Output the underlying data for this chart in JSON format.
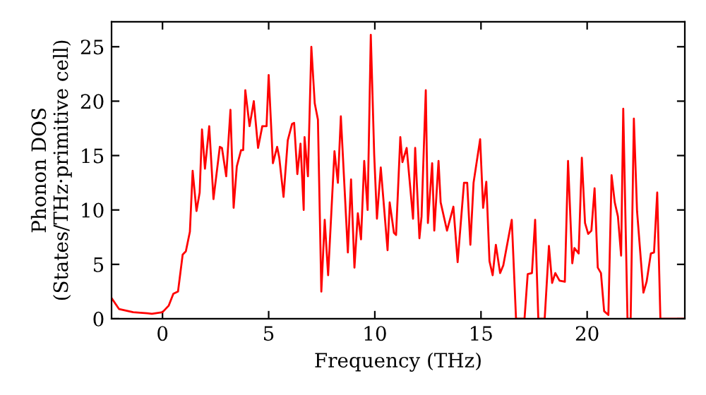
{
  "chart_data": {
    "type": "line",
    "xlabel": "Frequency (THz)",
    "ylabel": "Phonon DOS\n(States/THz·primitive cell)",
    "xlim": [
      -2.4,
      24.6
    ],
    "ylim": [
      0,
      27.3
    ],
    "xticks": [
      0,
      5,
      10,
      15,
      20
    ],
    "yticks": [
      0,
      5,
      10,
      15,
      20,
      25
    ],
    "grid": false,
    "marker": "none",
    "line_style": "solid",
    "series": [
      {
        "color": "#ff0000",
        "x": [
          -2.4,
          -2.05,
          -1.38,
          -0.71,
          -0.5,
          0.0,
          0.29,
          0.51,
          0.73,
          0.95,
          1.1,
          1.29,
          1.42,
          1.6,
          1.75,
          1.86,
          2.0,
          2.2,
          2.4,
          2.7,
          2.8,
          3.0,
          3.2,
          3.35,
          3.5,
          3.7,
          3.8,
          3.9,
          4.1,
          4.3,
          4.5,
          4.7,
          4.9,
          5.0,
          5.2,
          5.4,
          5.5,
          5.7,
          5.9,
          6.1,
          6.2,
          6.35,
          6.5,
          6.65,
          6.69,
          6.85,
          7.01,
          7.17,
          7.32,
          7.48,
          7.64,
          7.8,
          8.1,
          8.26,
          8.4,
          8.73,
          8.88,
          9.04,
          9.2,
          9.35,
          9.5,
          9.66,
          9.81,
          9.97,
          10.1,
          10.28,
          10.6,
          10.7,
          10.9,
          11.0,
          11.2,
          11.3,
          11.5,
          11.8,
          11.9,
          12.1,
          12.2,
          12.4,
          12.5,
          12.7,
          12.8,
          13.0,
          13.1,
          13.4,
          13.7,
          13.9,
          14.2,
          14.35,
          14.5,
          14.65,
          14.96,
          15.1,
          15.25,
          15.4,
          15.55,
          15.7,
          15.9,
          16.05,
          16.45,
          16.65,
          17.05,
          17.2,
          17.4,
          17.55,
          17.7,
          18.0,
          18.2,
          18.35,
          18.5,
          18.7,
          18.95,
          19.1,
          19.3,
          19.4,
          19.6,
          19.75,
          19.9,
          20.05,
          20.2,
          20.35,
          20.5,
          20.65,
          20.8,
          21.0,
          21.15,
          21.3,
          21.45,
          21.6,
          21.7,
          21.9,
          22.05,
          22.2,
          22.35,
          22.65,
          22.8,
          23.0,
          23.15,
          23.3,
          23.45,
          24.6
        ],
        "values": [
          1.9,
          0.9,
          0.6,
          0.5,
          0.45,
          0.6,
          1.2,
          2.3,
          2.5,
          5.9,
          6.2,
          8.0,
          13.6,
          9.9,
          11.6,
          17.4,
          13.8,
          17.7,
          11.0,
          15.8,
          15.7,
          13.1,
          19.2,
          10.2,
          14.0,
          15.5,
          15.5,
          21.0,
          17.7,
          20.0,
          15.7,
          17.7,
          17.7,
          22.4,
          14.3,
          15.8,
          14.8,
          11.2,
          16.4,
          17.9,
          18.0,
          13.3,
          16.1,
          10.0,
          16.7,
          13.1,
          25.0,
          19.8,
          18.3,
          2.5,
          9.1,
          4.0,
          15.4,
          12.5,
          18.6,
          6.1,
          12.8,
          4.7,
          9.7,
          7.3,
          14.5,
          10.0,
          26.1,
          15.1,
          9.2,
          13.9,
          6.3,
          10.7,
          7.9,
          7.7,
          16.7,
          14.4,
          15.7,
          9.2,
          15.7,
          7.4,
          9.4,
          21.0,
          8.8,
          14.3,
          8.1,
          14.5,
          10.7,
          8.1,
          10.3,
          5.2,
          12.5,
          12.5,
          6.8,
          12.5,
          16.5,
          10.2,
          12.6,
          5.3,
          4.0,
          6.8,
          4.2,
          4.9,
          9.1,
          0,
          0,
          4.1,
          4.2,
          9.1,
          0,
          0,
          6.7,
          3.3,
          4.2,
          3.5,
          3.4,
          14.5,
          5.1,
          6.5,
          6.0,
          14.8,
          8.8,
          7.8,
          8.1,
          12.0,
          4.7,
          4.2,
          0.7,
          0.35,
          13.2,
          10.7,
          9.4,
          5.8,
          19.3,
          0,
          0,
          18.4,
          9.9,
          2.4,
          3.4,
          6.0,
          6.1,
          11.6,
          0,
          0
        ]
      }
    ]
  }
}
